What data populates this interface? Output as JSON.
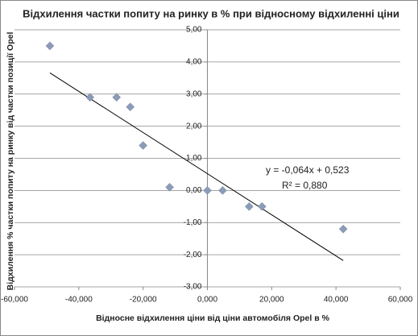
{
  "chart_data": {
    "type": "scatter",
    "title": "Відхилення частки попиту на ринку в % при відносному відхиленні ціни",
    "x_label": "Відносне відхилення ціни від ціни автомобіля Opel в %",
    "y_label": "Відхилення % частки попиту на ринку від частки позиції Opel",
    "x": [
      -49,
      -36.5,
      -28.25,
      -24,
      -20,
      -11.75,
      0,
      4.75,
      13,
      17,
      42.25
    ],
    "values": [
      4.5,
      2.9,
      2.9,
      2.6,
      1.4,
      0.1,
      0,
      0,
      -0.5,
      -0.5,
      -1.2
    ],
    "color": "#8c9bb8",
    "xlim": [
      -60,
      60
    ],
    "xticks": [
      {
        "value": -60,
        "label": "-60,000"
      },
      {
        "value": -40,
        "label": "-40,000"
      },
      {
        "value": -20,
        "label": "-20,000"
      },
      {
        "value": 0,
        "label": "0,000"
      },
      {
        "value": 20,
        "label": "20,000"
      },
      {
        "value": 40,
        "label": "40,000"
      },
      {
        "value": 60,
        "label": "60,000"
      }
    ],
    "ylim": [
      -3,
      5
    ],
    "yticks": [
      {
        "value": -3,
        "label": "-3,00"
      },
      {
        "value": -2,
        "label": "-2,00"
      },
      {
        "value": -1,
        "label": "-1,00"
      },
      {
        "value": 0,
        "label": "0,00"
      },
      {
        "value": 1,
        "label": "1,00"
      },
      {
        "value": 2,
        "label": "2,00"
      },
      {
        "value": 3,
        "label": "3,00"
      },
      {
        "value": 4,
        "label": "4,00"
      },
      {
        "value": 5,
        "label": "5,00"
      }
    ],
    "grid": true,
    "trendline": {
      "slope": -0.064,
      "intercept": 0.523,
      "equation": "y = -0,064x + 0,523",
      "r2_label": "R² = 0,880"
    }
  }
}
